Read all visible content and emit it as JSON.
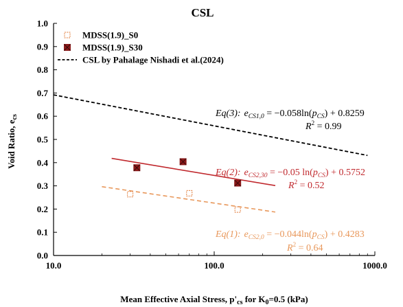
{
  "chart_data": {
    "type": "scatter",
    "title": "CSL",
    "xlabel": "Mean Effective Axial Stress, p'cs for K0=0.5 (kPa)",
    "xlabel_parts": {
      "pre": "Mean Effective Axial Stress, p'",
      "sub1": "cs",
      "mid": " for K",
      "sub2": "0",
      "post": "=0.5 (kPa)"
    },
    "ylabel": "Void Ratio, ecs",
    "ylabel_parts": {
      "pre": "Void Ratio, e",
      "sub": "cs"
    },
    "x_scale": "log",
    "xlim": [
      10,
      1000
    ],
    "ylim": [
      0,
      1.0
    ],
    "x_ticks": [
      10,
      100,
      1000
    ],
    "x_tick_labels": [
      "10.0",
      "100.0",
      "1000.0"
    ],
    "y_ticks": [
      0,
      0.1,
      0.2,
      0.3,
      0.4,
      0.5,
      0.6,
      0.7,
      0.8,
      0.9,
      1.0
    ],
    "y_tick_labels": [
      "0.0",
      "0.1",
      "0.2",
      "0.3",
      "0.4",
      "0.5",
      "0.6",
      "0.7",
      "0.8",
      "0.9",
      "1.0"
    ],
    "grid": false,
    "legend_position": "top-left",
    "series": [
      {
        "name": "MDSS(1.9)_S0",
        "kind": "points",
        "marker": "hollow-square",
        "color": "#E07B39",
        "points": [
          [
            30,
            0.264
          ],
          [
            70,
            0.268
          ],
          [
            140,
            0.198
          ]
        ]
      },
      {
        "name": "MDSS(1.9)_S30",
        "kind": "points",
        "marker": "filled-square-x",
        "color": "#8B1A1A",
        "points": [
          [
            33,
            0.378
          ],
          [
            64,
            0.404
          ],
          [
            140,
            0.312
          ]
        ]
      },
      {
        "name": "CSL by Pahalage Nishadi et al.(2024)",
        "kind": "line",
        "dash": "dashed",
        "color": "#000000",
        "points": [
          [
            10,
            0.692
          ],
          [
            900,
            0.431
          ]
        ]
      }
    ],
    "fits": [
      {
        "color": "#E8975A",
        "dash": "dashed",
        "x_range": [
          20,
          240
        ],
        "a": -0.044,
        "b": 0.4283
      },
      {
        "color": "#C0282D",
        "dash": "solid",
        "x_range": [
          23,
          240
        ],
        "a": -0.05,
        "b": 0.5752
      }
    ],
    "annotations": [
      {
        "eq": "Eq(3): e_CS1,0 = −0.058 ln(p'_CS) + 0.8259",
        "r2": "R^2 = 0.99",
        "color": "#000000"
      },
      {
        "eq": "Eq(2): e_CS2,30 = −0.05 ln(p'_CS) + 0.5752",
        "r2": "R^2 = 0.52",
        "color": "#C0282D"
      },
      {
        "eq": "Eq(1): e_CS2,0 = −0.044 ln(p'_CS) + 0.4283",
        "r2": "R^2 = 0.64",
        "color": "#E8975A"
      }
    ],
    "annotation_parts": [
      {
        "label": "Eq(3):",
        "e": "e",
        "sub": "CS1,0",
        "rhs1": " = −0.058ln(",
        "p": "p",
        "psub": "CS",
        "rhs2": ") + 0.8259",
        "r2l": "R",
        "r2r": " = 0.99"
      },
      {
        "label": "Eq(2):",
        "e": "e",
        "sub": "CS2,30",
        "rhs1": " = −0.05 ln(",
        "p": "p",
        "psub": "CS",
        "rhs2": ") + 0.5752",
        "r2l": "R",
        "r2r": " = 0.52"
      },
      {
        "label": "Eq(1):",
        "e": "e",
        "sub": "CS2,0",
        "rhs1": " = −0.044ln(",
        "p": "p",
        "psub": "CS",
        "rhs2": ") + 0.4283",
        "r2l": "R",
        "r2r": " = 0.64"
      }
    ]
  }
}
